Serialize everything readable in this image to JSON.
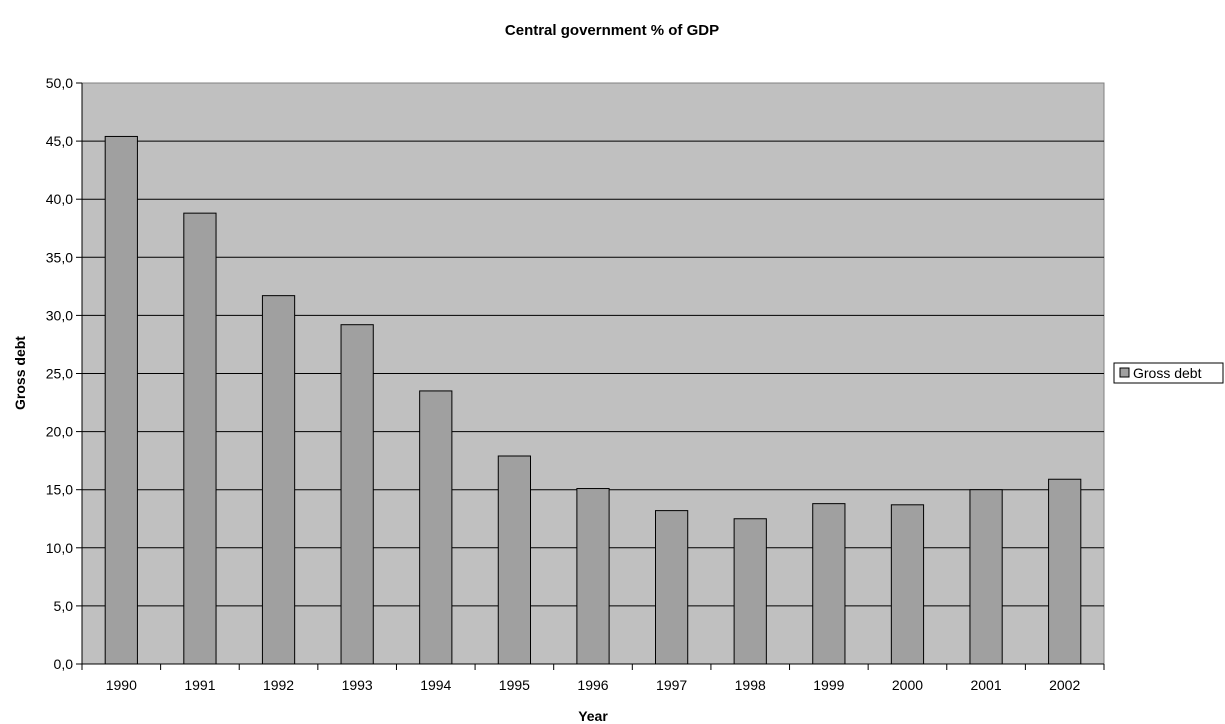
{
  "chart_data": {
    "type": "bar",
    "title": "Central government % of GDP",
    "xlabel": "Year",
    "ylabel": "Gross debt",
    "categories": [
      "1990",
      "1991",
      "1992",
      "1993",
      "1994",
      "1995",
      "1996",
      "1997",
      "1998",
      "1999",
      "2000",
      "2001",
      "2002"
    ],
    "series": [
      {
        "name": "Gross debt",
        "values": [
          45.4,
          38.8,
          31.7,
          29.2,
          23.5,
          17.9,
          15.1,
          13.2,
          12.5,
          13.8,
          13.7,
          15.0,
          15.9
        ]
      }
    ],
    "ylim": [
      0,
      50
    ],
    "yticks": [
      "0,0",
      "5,0",
      "10,0",
      "15,0",
      "20,0",
      "25,0",
      "30,0",
      "35,0",
      "40,0",
      "45,0",
      "50,0"
    ],
    "grid": true,
    "legend_position": "right",
    "colors": {
      "plot_bg": "#c0c0c0",
      "bar_fill": "#a0a0a0",
      "bar_stroke": "#000000",
      "gridline": "#000000"
    }
  }
}
